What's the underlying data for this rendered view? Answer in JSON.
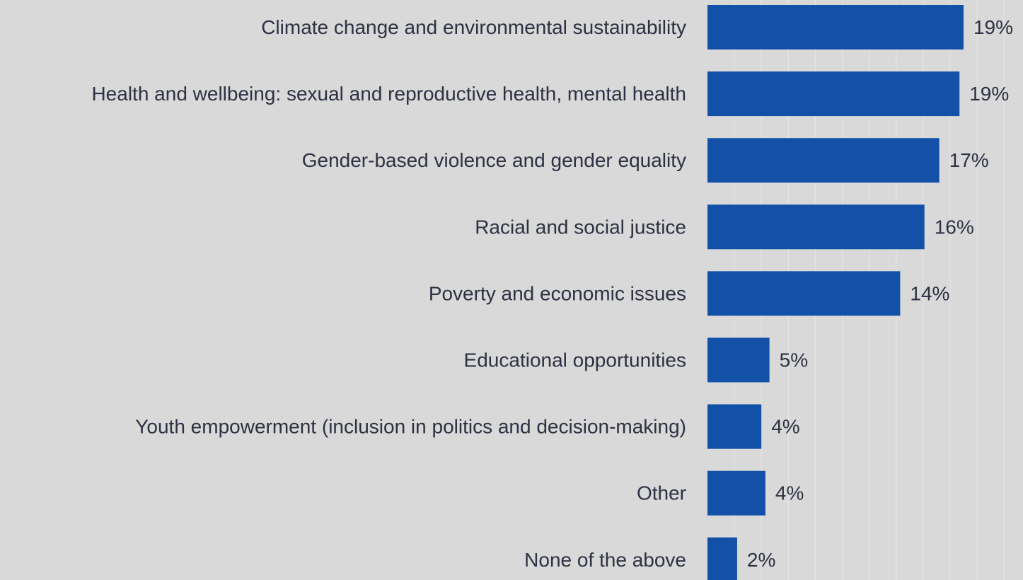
{
  "chart_data": {
    "type": "bar",
    "orientation": "horizontal",
    "categories": [
      "Climate change and environmental sustainability",
      "Health and wellbeing: sexual and reproductive health, mental health",
      "Gender-based violence and gender equality",
      "Racial and social justice",
      "Poverty and economic issues",
      "Educational opportunities",
      "Youth empowerment (inclusion in politics and decision-making)",
      "Other",
      "None of the above"
    ],
    "values": [
      19,
      19,
      17,
      16,
      14,
      5,
      4,
      4,
      2
    ],
    "value_labels": [
      "19%",
      "19%",
      "17%",
      "16%",
      "14%",
      "5%",
      "4%",
      "4%",
      "2%"
    ],
    "bar_magnitudes": [
      19.0,
      18.7,
      17.2,
      16.1,
      14.3,
      4.6,
      4.0,
      4.3,
      2.2
    ],
    "unit": "%",
    "title": "",
    "xlabel": "",
    "ylabel": "",
    "xlim": [
      0,
      22
    ],
    "grid": true,
    "legend": "none",
    "colors": {
      "bar": "#1351a9",
      "background": "#d9d9d9",
      "text": "#2d3142",
      "grid": "#e6e6e6"
    }
  }
}
